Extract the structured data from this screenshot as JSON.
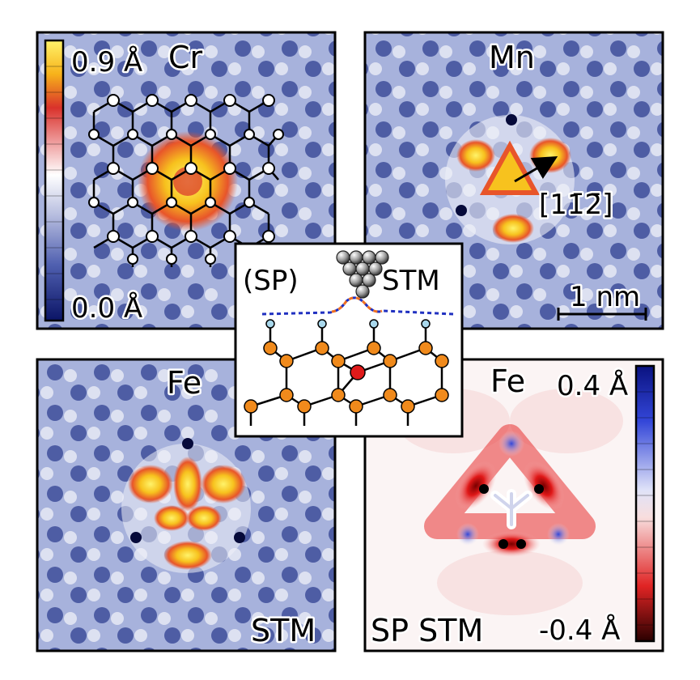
{
  "panels": {
    "cr": {
      "element_label": "Cr",
      "colorbar_max": "0.9 Å",
      "colorbar_min": "0.0 Å"
    },
    "mn": {
      "element_label": "Mn",
      "direction_label": "[11̄2̄]",
      "scale_bar_label": "1 nm"
    },
    "fe_stm": {
      "element_label": "Fe",
      "mode_label": "STM"
    },
    "fe_sp": {
      "element_label": "Fe",
      "mode_label": "SP STM",
      "colorbar_max": "0.4 Å",
      "colorbar_min": "-0.4 Å"
    }
  },
  "inset": {
    "left_label": "(SP)",
    "right_label": "STM"
  },
  "colors": {
    "lattice_blue": "#6a79b8",
    "adsorbate_yellow": "#f7d21e",
    "adsorbate_red": "#d9322b",
    "sp_red": "#d21414",
    "sp_blue": "#2a3ecf",
    "atom_orange": "#f08a1c",
    "atom_impurity": "#e01a1a",
    "atom_hydrogen": "#a9d8ec",
    "dashed_blue": "#2030c0",
    "dashed_orange": "#f07020"
  },
  "icons": [
    "stm-tip-icon",
    "direction-arrow-icon"
  ]
}
